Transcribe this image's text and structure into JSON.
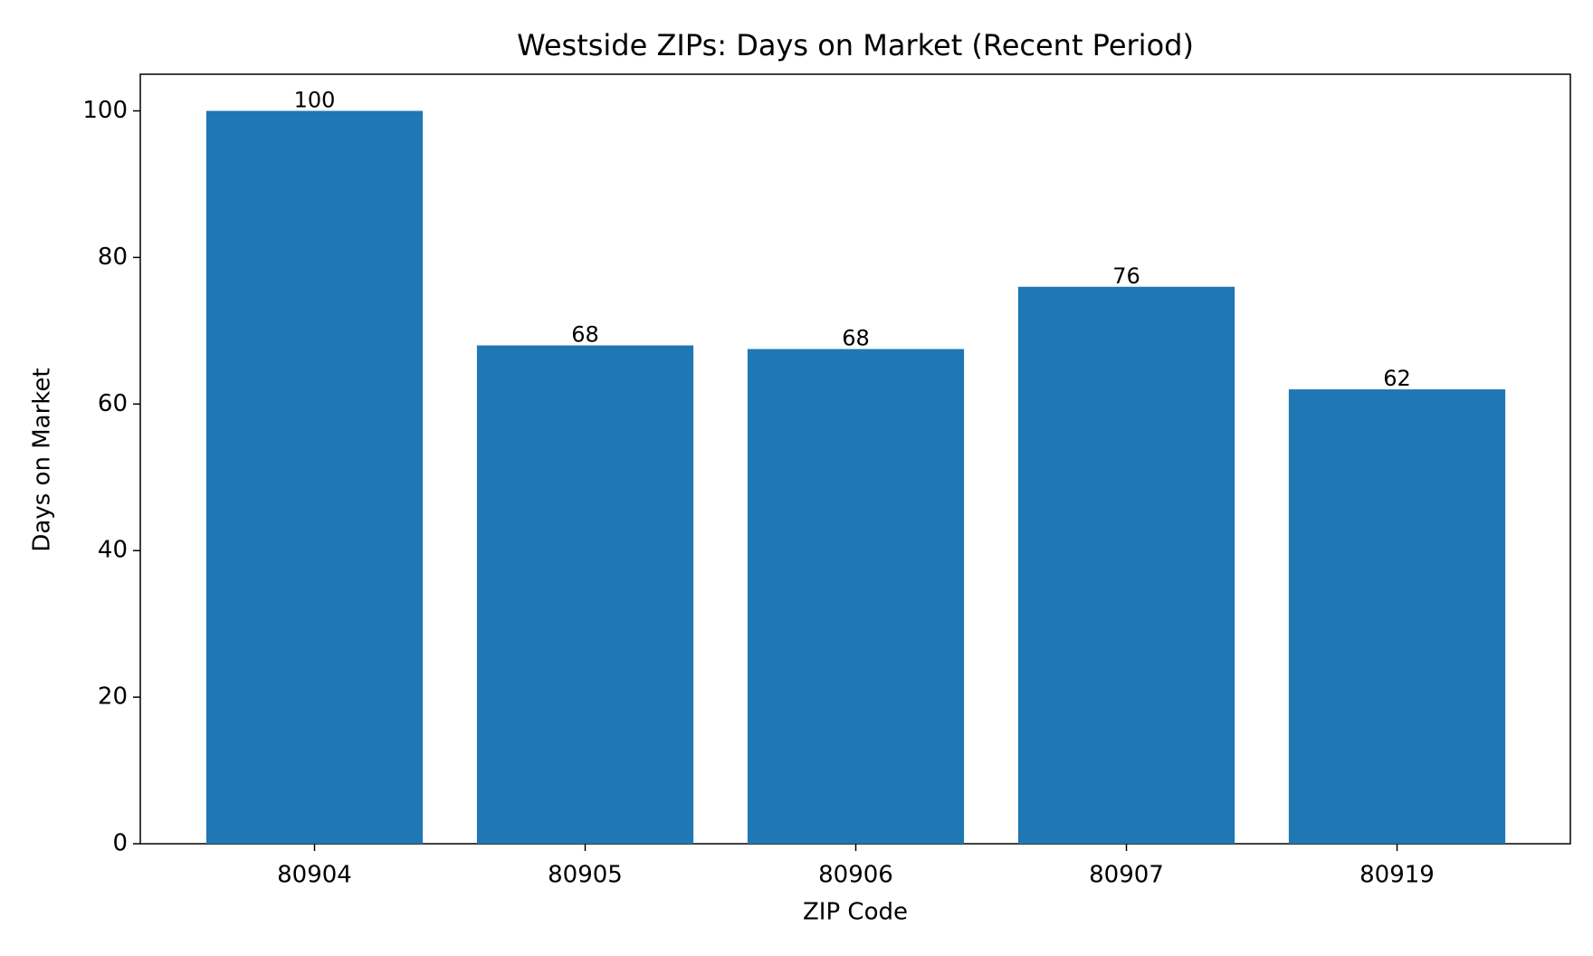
{
  "chart_data": {
    "type": "bar",
    "title": "Westside ZIPs: Days on Market (Recent Period)",
    "x_label": "ZIP Code",
    "y_label": "Days on Market",
    "categories": [
      "80904",
      "80905",
      "80906",
      "80907",
      "80919"
    ],
    "values": [
      100,
      68,
      67.5,
      76,
      62
    ],
    "value_labels": [
      "100",
      "68",
      "68",
      "76",
      "62"
    ],
    "color": "#1f77b4",
    "ylim": [
      0,
      105
    ],
    "yticks": [
      0,
      20,
      40,
      60,
      80,
      100
    ],
    "grid": false
  }
}
